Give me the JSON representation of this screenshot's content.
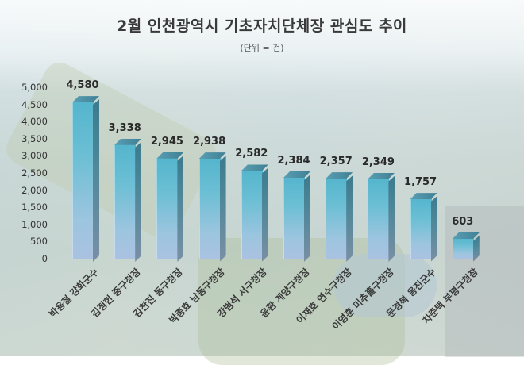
{
  "title": "2월 인천광역시 기초자치단체장 관심도 추이",
  "subtitle": "(단위 = 건)",
  "colors": {
    "bar_front_top": "#54b5cd",
    "bar_front_bottom": "#aac2e2",
    "bar_side": "#3c7a8e",
    "text": "#3a3a3a"
  },
  "y_ticks": [
    "5,000",
    "4,500",
    "4,000",
    "3,500",
    "3,000",
    "2,500",
    "2,000",
    "1,500",
    "1,000",
    "500",
    "0"
  ],
  "bars": [
    {
      "label": "박용철 강화군수",
      "value_label": "4,580"
    },
    {
      "label": "김정헌 중구청장",
      "value_label": "3,338"
    },
    {
      "label": "김찬진 동구청장",
      "value_label": "2,945"
    },
    {
      "label": "박종효 남동구청장",
      "value_label": "2,938"
    },
    {
      "label": "강범석 서구청장",
      "value_label": "2,582"
    },
    {
      "label": "윤환 계양구청장",
      "value_label": "2,384"
    },
    {
      "label": "이재호 연수구청장",
      "value_label": "2,357"
    },
    {
      "label": "이영훈 미추홀구청장",
      "value_label": "2,349"
    },
    {
      "label": "문경복 옹진군수",
      "value_label": "1,757"
    },
    {
      "label": "차준택 부평구청장",
      "value_label": "603"
    }
  ],
  "chart_data": {
    "type": "bar",
    "title": "2월 인천광역시 기초자치단체장 관심도 추이",
    "subtitle": "(단위 = 건)",
    "categories": [
      "박용철 강화군수",
      "김정헌 중구청장",
      "김찬진 동구청장",
      "박종효 남동구청장",
      "강범석 서구청장",
      "윤환 계양구청장",
      "이재호 연수구청장",
      "이영훈 미추홀구청장",
      "문경복 옹진군수",
      "차준택 부평구청장"
    ],
    "values": [
      4580,
      3338,
      2945,
      2938,
      2582,
      2384,
      2357,
      2349,
      1757,
      603
    ],
    "xlabel": "",
    "ylabel": "",
    "ylim": [
      0,
      5000
    ],
    "ytick_step": 500,
    "grid": false,
    "legend": "none",
    "style": "3d-bar, data labels above bars, rotated x labels -45°"
  }
}
